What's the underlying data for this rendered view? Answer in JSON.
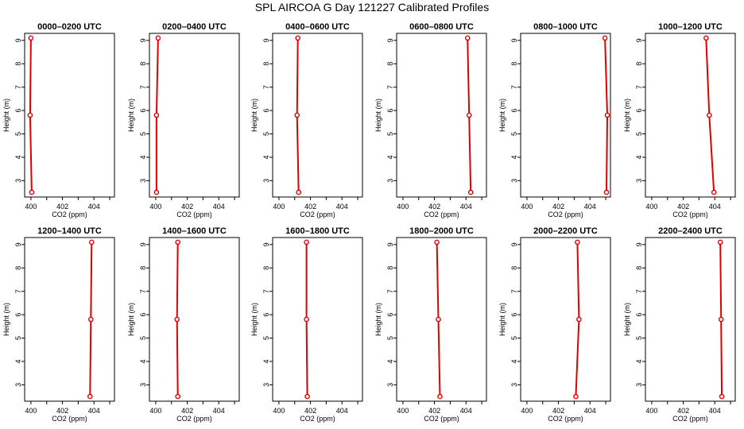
{
  "figure": {
    "title": "SPL AIRCOA G  Day 121227  Calibrated Profiles"
  },
  "chart_data": [
    {
      "type": "line",
      "title": "0000–0200 UTC",
      "xlabel": "CO2 (ppm)",
      "ylabel": "Height (m)",
      "xlim": [
        399.6,
        405.3
      ],
      "ylim": [
        2.3,
        9.3
      ],
      "xticks": [
        400,
        402,
        404
      ],
      "yticks": [
        3,
        4,
        5,
        6,
        7,
        8,
        9
      ],
      "heights": [
        2.5,
        5.8,
        9.1
      ],
      "co2": [
        400.05,
        399.95,
        400.0
      ],
      "color": "#dd0000",
      "grid": false
    },
    {
      "type": "line",
      "title": "0200–0400 UTC",
      "xlabel": "CO2 (ppm)",
      "ylabel": "Height (m)",
      "xlim": [
        399.6,
        405.3
      ],
      "ylim": [
        2.3,
        9.3
      ],
      "xticks": [
        400,
        402,
        404
      ],
      "yticks": [
        3,
        4,
        5,
        6,
        7,
        8,
        9
      ],
      "heights": [
        2.5,
        5.8,
        9.1
      ],
      "co2": [
        400.05,
        400.05,
        400.15
      ],
      "color": "#dd0000",
      "grid": false
    },
    {
      "type": "line",
      "title": "0400–0600 UTC",
      "xlabel": "CO2 (ppm)",
      "ylabel": "Height (m)",
      "xlim": [
        399.6,
        405.3
      ],
      "ylim": [
        2.3,
        9.3
      ],
      "xticks": [
        400,
        402,
        404
      ],
      "yticks": [
        3,
        4,
        5,
        6,
        7,
        8,
        9
      ],
      "heights": [
        2.5,
        5.8,
        9.1
      ],
      "co2": [
        401.25,
        401.15,
        401.2
      ],
      "color": "#dd0000",
      "grid": false
    },
    {
      "type": "line",
      "title": "0600–0800 UTC",
      "xlabel": "CO2 (ppm)",
      "ylabel": "Height (m)",
      "xlim": [
        399.6,
        405.3
      ],
      "ylim": [
        2.3,
        9.3
      ],
      "xticks": [
        400,
        402,
        404
      ],
      "yticks": [
        3,
        4,
        5,
        6,
        7,
        8,
        9
      ],
      "heights": [
        2.5,
        5.8,
        9.1
      ],
      "co2": [
        404.3,
        404.2,
        404.1
      ],
      "color": "#dd0000",
      "grid": false
    },
    {
      "type": "line",
      "title": "0800–1000 UTC",
      "xlabel": "CO2 (ppm)",
      "ylabel": "Height (m)",
      "xlim": [
        399.6,
        405.3
      ],
      "ylim": [
        2.3,
        9.3
      ],
      "xticks": [
        400,
        402,
        404
      ],
      "yticks": [
        3,
        4,
        5,
        6,
        7,
        8,
        9
      ],
      "heights": [
        2.5,
        5.8,
        9.1
      ],
      "co2": [
        405.05,
        405.1,
        404.95
      ],
      "color": "#dd0000",
      "grid": false
    },
    {
      "type": "line",
      "title": "1000–1200 UTC",
      "xlabel": "CO2 (ppm)",
      "ylabel": "Height (m)",
      "xlim": [
        399.6,
        405.3
      ],
      "ylim": [
        2.3,
        9.3
      ],
      "xticks": [
        400,
        402,
        404
      ],
      "yticks": [
        3,
        4,
        5,
        6,
        7,
        8,
        9
      ],
      "heights": [
        2.5,
        5.8,
        9.1
      ],
      "co2": [
        403.95,
        403.65,
        403.45
      ],
      "color": "#dd0000",
      "grid": false
    },
    {
      "type": "line",
      "title": "1200–1400 UTC",
      "xlabel": "CO2 (ppm)",
      "ylabel": "Height (m)",
      "xlim": [
        399.6,
        405.3
      ],
      "ylim": [
        2.3,
        9.3
      ],
      "xticks": [
        400,
        402,
        404
      ],
      "yticks": [
        3,
        4,
        5,
        6,
        7,
        8,
        9
      ],
      "heights": [
        2.5,
        5.8,
        9.1
      ],
      "co2": [
        403.75,
        403.8,
        403.85
      ],
      "color": "#dd0000",
      "grid": false
    },
    {
      "type": "line",
      "title": "1400–1600 UTC",
      "xlabel": "CO2 (ppm)",
      "ylabel": "Height (m)",
      "xlim": [
        399.6,
        405.3
      ],
      "ylim": [
        2.3,
        9.3
      ],
      "xticks": [
        400,
        402,
        404
      ],
      "yticks": [
        3,
        4,
        5,
        6,
        7,
        8,
        9
      ],
      "heights": [
        2.5,
        5.8,
        9.1
      ],
      "co2": [
        401.4,
        401.35,
        401.4
      ],
      "color": "#dd0000",
      "grid": false
    },
    {
      "type": "line",
      "title": "1600–1800 UTC",
      "xlabel": "CO2 (ppm)",
      "ylabel": "Height (m)",
      "xlim": [
        399.6,
        405.3
      ],
      "ylim": [
        2.3,
        9.3
      ],
      "xticks": [
        400,
        402,
        404
      ],
      "yticks": [
        3,
        4,
        5,
        6,
        7,
        8,
        9
      ],
      "heights": [
        2.5,
        5.8,
        9.1
      ],
      "co2": [
        401.8,
        401.75,
        401.75
      ],
      "color": "#dd0000",
      "grid": false
    },
    {
      "type": "line",
      "title": "1800–2000 UTC",
      "xlabel": "CO2 (ppm)",
      "ylabel": "Height (m)",
      "xlim": [
        399.6,
        405.3
      ],
      "ylim": [
        2.3,
        9.3
      ],
      "xticks": [
        400,
        402,
        404
      ],
      "yticks": [
        3,
        4,
        5,
        6,
        7,
        8,
        9
      ],
      "heights": [
        2.5,
        5.8,
        9.1
      ],
      "co2": [
        402.35,
        402.25,
        402.15
      ],
      "color": "#dd0000",
      "grid": false
    },
    {
      "type": "line",
      "title": "2000–2200 UTC",
      "xlabel": "CO2 (ppm)",
      "ylabel": "Height (m)",
      "xlim": [
        399.6,
        405.3
      ],
      "ylim": [
        2.3,
        9.3
      ],
      "xticks": [
        400,
        402,
        404
      ],
      "yticks": [
        3,
        4,
        5,
        6,
        7,
        8,
        9
      ],
      "heights": [
        2.5,
        5.8,
        9.1
      ],
      "co2": [
        403.1,
        403.3,
        403.2
      ],
      "color": "#dd0000",
      "grid": false
    },
    {
      "type": "line",
      "title": "2200–2400 UTC",
      "xlabel": "CO2 (ppm)",
      "ylabel": "Height (m)",
      "xlim": [
        399.6,
        405.3
      ],
      "ylim": [
        2.3,
        9.3
      ],
      "xticks": [
        400,
        402,
        404
      ],
      "yticks": [
        3,
        4,
        5,
        6,
        7,
        8,
        9
      ],
      "heights": [
        2.5,
        5.8,
        9.1
      ],
      "co2": [
        404.45,
        404.4,
        404.35
      ],
      "color": "#dd0000",
      "grid": false
    }
  ]
}
